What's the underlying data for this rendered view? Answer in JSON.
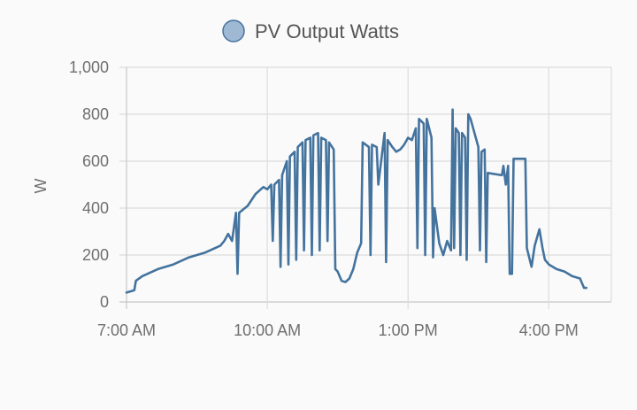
{
  "chart_data": {
    "type": "line",
    "legend": {
      "label": "PV Output Watts",
      "position": "top-center"
    },
    "ylabel": "W",
    "ylim": [
      0,
      1000
    ],
    "yticks": [
      "1,000",
      "800",
      "600",
      "400",
      "200",
      "0"
    ],
    "ytick_values": [
      1000,
      800,
      600,
      400,
      200,
      0
    ],
    "xlim": [
      "7:00 AM",
      "5:20 PM"
    ],
    "xticks": [
      "7:00 AM",
      "10:00 AM",
      "1:00 PM",
      "4:00 PM"
    ],
    "grid": true,
    "series": [
      {
        "name": "PV Output Watts",
        "color": "#44739e",
        "points": [
          [
            "7:00 AM",
            40
          ],
          [
            "7:10 AM",
            50
          ],
          [
            "7:12 AM",
            90
          ],
          [
            "7:20 AM",
            110
          ],
          [
            "7:40 AM",
            140
          ],
          [
            "8:00 AM",
            160
          ],
          [
            "8:20 AM",
            190
          ],
          [
            "8:40 AM",
            210
          ],
          [
            "9:00 AM",
            240
          ],
          [
            "9:05 AM",
            260
          ],
          [
            "9:10 AM",
            290
          ],
          [
            "9:15 AM",
            260
          ],
          [
            "9:20 AM",
            380
          ],
          [
            "9:22 AM",
            120
          ],
          [
            "9:24 AM",
            380
          ],
          [
            "9:35 AM",
            410
          ],
          [
            "9:45 AM",
            460
          ],
          [
            "9:55 AM",
            490
          ],
          [
            "10:00 AM",
            480
          ],
          [
            "10:05 AM",
            500
          ],
          [
            "10:07 AM",
            260
          ],
          [
            "10:09 AM",
            500
          ],
          [
            "10:15 AM",
            520
          ],
          [
            "10:17 AM",
            150
          ],
          [
            "10:19 AM",
            540
          ],
          [
            "10:25 AM",
            600
          ],
          [
            "10:27 AM",
            160
          ],
          [
            "10:29 AM",
            620
          ],
          [
            "10:35 AM",
            640
          ],
          [
            "10:37 AM",
            180
          ],
          [
            "10:39 AM",
            660
          ],
          [
            "10:45 AM",
            680
          ],
          [
            "10:47 AM",
            220
          ],
          [
            "10:49 AM",
            690
          ],
          [
            "10:55 AM",
            700
          ],
          [
            "10:57 AM",
            200
          ],
          [
            "10:59 AM",
            710
          ],
          [
            "11:05 AM",
            720
          ],
          [
            "11:07 AM",
            220
          ],
          [
            "11:09 AM",
            700
          ],
          [
            "11:15 AM",
            690
          ],
          [
            "11:17 AM",
            260
          ],
          [
            "11:19 AM",
            680
          ],
          [
            "11:25 AM",
            650
          ],
          [
            "11:27 AM",
            140
          ],
          [
            "11:30 AM",
            130
          ],
          [
            "11:35 AM",
            90
          ],
          [
            "11:40 AM",
            85
          ],
          [
            "11:45 AM",
            100
          ],
          [
            "11:50 AM",
            140
          ],
          [
            "11:55 AM",
            210
          ],
          [
            "12:00 PM",
            250
          ],
          [
            "12:02 PM",
            680
          ],
          [
            "12:10 PM",
            660
          ],
          [
            "12:12 PM",
            200
          ],
          [
            "12:14 PM",
            670
          ],
          [
            "12:20 PM",
            660
          ],
          [
            "12:22 PM",
            500
          ],
          [
            "12:30 PM",
            720
          ],
          [
            "12:32 PM",
            170
          ],
          [
            "12:34 PM",
            690
          ],
          [
            "12:40 PM",
            660
          ],
          [
            "12:45 PM",
            640
          ],
          [
            "12:50 PM",
            650
          ],
          [
            "12:55 PM",
            670
          ],
          [
            "1:00 PM",
            700
          ],
          [
            "1:05 PM",
            690
          ],
          [
            "1:10 PM",
            740
          ],
          [
            "1:12 PM",
            230
          ],
          [
            "1:14 PM",
            780
          ],
          [
            "1:20 PM",
            760
          ],
          [
            "1:22 PM",
            200
          ],
          [
            "1:24 PM",
            780
          ],
          [
            "1:30 PM",
            700
          ],
          [
            "1:32 PM",
            190
          ],
          [
            "1:34 PM",
            400
          ],
          [
            "1:40 PM",
            250
          ],
          [
            "1:45 PM",
            200
          ],
          [
            "1:50 PM",
            260
          ],
          [
            "1:55 PM",
            220
          ],
          [
            "1:57 PM",
            820
          ],
          [
            "1:59 PM",
            230
          ],
          [
            "2:01 PM",
            740
          ],
          [
            "2:05 PM",
            720
          ],
          [
            "2:07 PM",
            200
          ],
          [
            "2:09 PM",
            720
          ],
          [
            "2:13 PM",
            700
          ],
          [
            "2:15 PM",
            180
          ],
          [
            "2:17 PM",
            800
          ],
          [
            "2:20 PM",
            780
          ],
          [
            "2:25 PM",
            720
          ],
          [
            "2:30 PM",
            660
          ],
          [
            "2:32 PM",
            220
          ],
          [
            "2:34 PM",
            640
          ],
          [
            "2:38 PM",
            650
          ],
          [
            "2:40 PM",
            170
          ],
          [
            "2:42 PM",
            550
          ],
          [
            "3:00 PM",
            540
          ],
          [
            "3:02 PM",
            580
          ],
          [
            "3:05 PM",
            500
          ],
          [
            "3:08 PM",
            580
          ],
          [
            "3:10 PM",
            120
          ],
          [
            "3:13 PM",
            120
          ],
          [
            "3:15 PM",
            610
          ],
          [
            "3:20 PM",
            610
          ],
          [
            "3:30 PM",
            610
          ],
          [
            "3:32 PM",
            230
          ],
          [
            "3:38 PM",
            150
          ],
          [
            "3:42 PM",
            240
          ],
          [
            "3:48 PM",
            310
          ],
          [
            "3:52 PM",
            230
          ],
          [
            "3:55 PM",
            180
          ],
          [
            "4:00 PM",
            160
          ],
          [
            "4:10 PM",
            140
          ],
          [
            "4:20 PM",
            130
          ],
          [
            "4:30 PM",
            110
          ],
          [
            "4:40 PM",
            100
          ],
          [
            "4:45 PM",
            60
          ],
          [
            "4:48 PM",
            60
          ]
        ]
      }
    ]
  }
}
